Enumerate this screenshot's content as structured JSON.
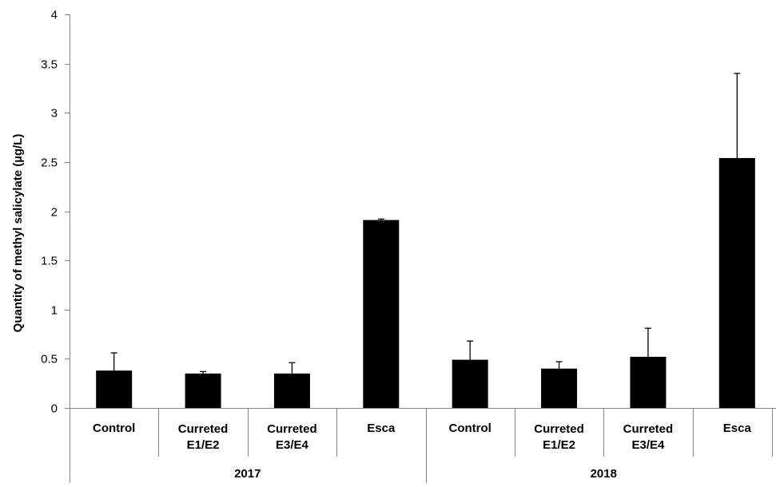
{
  "chart_data": {
    "type": "bar",
    "title": "",
    "ylabel": "Quantity of methyl salicylate (µg/L)",
    "xlabel": "",
    "ylim": [
      0,
      4
    ],
    "yticks": [
      0,
      0.5,
      1,
      1.5,
      2,
      2.5,
      3,
      3.5,
      4
    ],
    "ytick_labels": [
      "0",
      "0.5",
      "1",
      "1.5",
      "2",
      "2.5",
      "3",
      "3.5",
      "4"
    ],
    "grid": false,
    "groups": [
      {
        "label": "2017",
        "categories": [
          {
            "lines": [
              "Control"
            ],
            "value": 0.38,
            "error": 0.18
          },
          {
            "lines": [
              "Curreted",
              "E1/E2"
            ],
            "value": 0.35,
            "error": 0.02
          },
          {
            "lines": [
              "Curreted",
              "E3/E4"
            ],
            "value": 0.35,
            "error": 0.11
          },
          {
            "lines": [
              "Esca"
            ],
            "value": 1.91,
            "error": 0.01
          }
        ]
      },
      {
        "label": "2018",
        "categories": [
          {
            "lines": [
              "Control"
            ],
            "value": 0.49,
            "error": 0.19
          },
          {
            "lines": [
              "Curreted",
              "E1/E2"
            ],
            "value": 0.4,
            "error": 0.07
          },
          {
            "lines": [
              "Curreted",
              "E3/E4"
            ],
            "value": 0.52,
            "error": 0.29
          },
          {
            "lines": [
              "Esca"
            ],
            "value": 2.54,
            "error": 0.86
          }
        ]
      }
    ],
    "colors": {
      "bar": "#000000",
      "axis": "#868686",
      "error_bar": "#000000"
    }
  }
}
